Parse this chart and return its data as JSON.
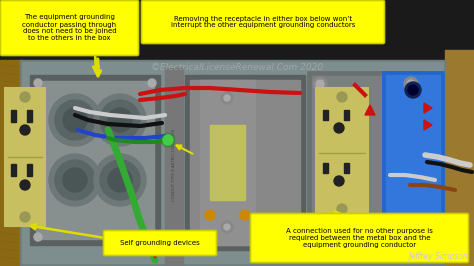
{
  "bg_color": "#1a1a1a",
  "wall_color_left": "#8B6914",
  "wall_color_right": "#9B7A30",
  "panel_bg": "#7a8888",
  "panel_dark": "#5a6868",
  "lbox_color": "#666e6e",
  "lbox_inner": "#888f8f",
  "knockout_outer": "#7a8080",
  "knockout_inner": "#555f5f",
  "outlet_face": "#c8c060",
  "outlet_edge": "#a0a040",
  "outlet_slot": "#222222",
  "outlet_screw": "#999955",
  "switch_plate": "#8a8a5a",
  "switch_toggle": "#c0c060",
  "blue_box": "#2266cc",
  "blue_box_edge": "#1144aa",
  "conduit_strip": "#888888",
  "wire_red": "#cc1111",
  "wire_black": "#111111",
  "wire_white": "#cccccc",
  "wire_green": "#228822",
  "wire_blue": "#2244cc",
  "wire_brown": "#8B4513",
  "wire_green2": "#33aa33",
  "green_dot": "#44cc44",
  "annotation_bg": "#ffff00",
  "annotation_text": "#000000",
  "annotation_edge": "#cccc00",
  "arrow_color": "#dddd00",
  "watermark_color": "#bbbbbb",
  "title_top_left": "The equipment grounding\nconductor passing through\ndoes not need to be joined\nto the others in the box",
  "title_top_center": "Removing the receptacle in either box below won’t\ninterrupt the other equipment grounding conductors",
  "label_self_grounding": "Self grounding devices",
  "label_connection": "A connection used for no other purpose is\nrequired between the metal box and the\nequipment grounding conductor",
  "watermark": "©ElectricalLicenseRenewal.Com 2020",
  "author": "Jeffrey Simpson",
  "figsize": [
    4.74,
    2.66
  ],
  "dpi": 100
}
